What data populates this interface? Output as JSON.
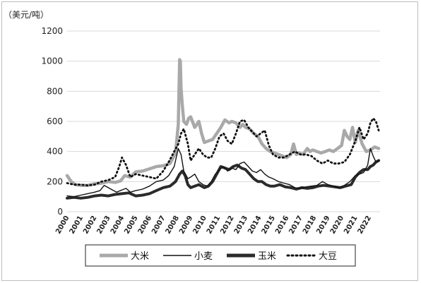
{
  "chart_data": {
    "type": "line",
    "title": "",
    "unit_label": "（美元/吨）",
    "xlabel": "",
    "ylabel": "",
    "ylim": [
      0,
      1200
    ],
    "yticks": [
      0,
      200,
      400,
      600,
      800,
      1000,
      1200
    ],
    "xlim": [
      2000,
      2022.8
    ],
    "xticks": [
      "2000",
      "2001",
      "2002",
      "2003",
      "2004",
      "2005",
      "2006",
      "2007",
      "2008",
      "2009",
      "2010",
      "2011",
      "2012",
      "2013",
      "2014",
      "2015",
      "2016",
      "2017",
      "2018",
      "2019",
      "2020",
      "2021",
      "2022"
    ],
    "grid": "horizontal",
    "legend_position": "bottom",
    "series": [
      {
        "name": "大米",
        "style": "thick-gray",
        "color": "#a9a9a9",
        "x": [
          2000.0,
          2000.3,
          2000.6,
          2001.0,
          2001.5,
          2002.0,
          2002.5,
          2003.0,
          2003.5,
          2003.9,
          2004.2,
          2004.6,
          2005.0,
          2005.5,
          2006.0,
          2006.5,
          2007.0,
          2007.5,
          2007.9,
          2008.1,
          2008.2,
          2008.25,
          2008.3,
          2008.4,
          2008.5,
          2008.7,
          2008.85,
          2009.0,
          2009.3,
          2009.6,
          2009.8,
          2010.0,
          2010.3,
          2010.6,
          2010.9,
          2011.2,
          2011.5,
          2011.8,
          2012.0,
          2012.3,
          2012.6,
          2012.8,
          2013.0,
          2013.3,
          2013.6,
          2013.9,
          2014.2,
          2014.5,
          2014.8,
          2015.1,
          2015.4,
          2015.7,
          2016.0,
          2016.3,
          2016.5,
          2016.7,
          2016.9,
          2017.2,
          2017.5,
          2017.7,
          2017.9,
          2018.2,
          2018.5,
          2018.8,
          2019.1,
          2019.4,
          2019.7,
          2020.0,
          2020.2,
          2020.4,
          2020.6,
          2020.8,
          2021.0,
          2021.2,
          2021.5,
          2021.8,
          2022.1,
          2022.4,
          2022.7
        ],
        "values": [
          240,
          200,
          180,
          175,
          175,
          185,
          190,
          200,
          195,
          205,
          240,
          230,
          265,
          270,
          285,
          300,
          305,
          320,
          390,
          580,
          1010,
          1000,
          820,
          700,
          600,
          580,
          620,
          630,
          560,
          600,
          520,
          460,
          470,
          480,
          520,
          560,
          610,
          590,
          600,
          590,
          560,
          580,
          560,
          550,
          520,
          500,
          450,
          420,
          400,
          390,
          380,
          370,
          360,
          380,
          450,
          380,
          390,
          380,
          420,
          400,
          410,
          400,
          390,
          400,
          410,
          400,
          420,
          440,
          540,
          500,
          480,
          560,
          460,
          540,
          450,
          400,
          410,
          430,
          420
        ]
      },
      {
        "name": "小麦",
        "style": "thin-black",
        "color": "#111111",
        "x": [
          2000.0,
          2000.5,
          2001.0,
          2001.5,
          2002.0,
          2002.4,
          2002.7,
          2003.0,
          2003.3,
          2003.6,
          2004.0,
          2004.3,
          2004.6,
          2005.0,
          2005.5,
          2006.0,
          2006.5,
          2007.0,
          2007.4,
          2007.8,
          2008.1,
          2008.3,
          2008.5,
          2008.8,
          2009.0,
          2009.3,
          2009.6,
          2009.9,
          2010.2,
          2010.5,
          2010.8,
          2011.1,
          2011.4,
          2011.7,
          2012.0,
          2012.3,
          2012.6,
          2012.9,
          2013.2,
          2013.5,
          2013.8,
          2014.1,
          2014.4,
          2014.7,
          2015.0,
          2015.4,
          2015.8,
          2016.2,
          2016.6,
          2017.0,
          2017.4,
          2017.8,
          2018.2,
          2018.6,
          2019.0,
          2019.4,
          2019.8,
          2020.2,
          2020.6,
          2021.0,
          2021.3,
          2021.6,
          2021.9,
          2022.1,
          2022.3,
          2022.5,
          2022.7
        ],
        "values": [
          105,
          100,
          110,
          120,
          130,
          140,
          175,
          160,
          145,
          130,
          145,
          155,
          130,
          140,
          150,
          170,
          200,
          210,
          240,
          300,
          420,
          380,
          270,
          220,
          230,
          250,
          200,
          180,
          170,
          200,
          250,
          280,
          300,
          270,
          290,
          280,
          320,
          330,
          300,
          270,
          260,
          280,
          250,
          230,
          220,
          200,
          190,
          180,
          160,
          155,
          165,
          170,
          175,
          200,
          180,
          170,
          160,
          175,
          200,
          240,
          250,
          260,
          310,
          420,
          370,
          330,
          340
        ]
      },
      {
        "name": "玉米",
        "style": "thick-black",
        "color": "#2b2b2b",
        "x": [
          2000.0,
          2000.5,
          2001.0,
          2001.5,
          2002.0,
          2002.5,
          2003.0,
          2003.5,
          2004.0,
          2004.5,
          2005.0,
          2005.5,
          2006.0,
          2006.5,
          2007.0,
          2007.5,
          2007.9,
          2008.2,
          2008.4,
          2008.6,
          2008.8,
          2009.0,
          2009.3,
          2009.6,
          2010.0,
          2010.3,
          2010.6,
          2010.9,
          2011.2,
          2011.5,
          2011.8,
          2012.1,
          2012.4,
          2012.7,
          2013.0,
          2013.3,
          2013.6,
          2013.9,
          2014.2,
          2014.5,
          2014.8,
          2015.1,
          2015.5,
          2015.9,
          2016.3,
          2016.7,
          2017.1,
          2017.5,
          2017.9,
          2018.3,
          2018.7,
          2019.1,
          2019.5,
          2019.9,
          2020.3,
          2020.7,
          2021.0,
          2021.3,
          2021.6,
          2021.9,
          2022.1,
          2022.3,
          2022.5,
          2022.7
        ],
        "values": [
          90,
          95,
          90,
          95,
          105,
          110,
          105,
          115,
          120,
          125,
          105,
          110,
          120,
          140,
          160,
          170,
          200,
          250,
          270,
          240,
          180,
          160,
          170,
          180,
          160,
          170,
          200,
          250,
          300,
          290,
          280,
          300,
          310,
          290,
          280,
          250,
          220,
          200,
          200,
          180,
          170,
          170,
          180,
          165,
          160,
          150,
          160,
          155,
          160,
          170,
          175,
          170,
          165,
          160,
          170,
          180,
          230,
          260,
          280,
          280,
          300,
          310,
          330,
          340
        ]
      },
      {
        "name": "大豆",
        "style": "dotted-black",
        "color": "#111111",
        "x": [
          2000.0,
          2000.5,
          2001.0,
          2001.5,
          2002.0,
          2002.5,
          2003.0,
          2003.5,
          2003.8,
          2004.0,
          2004.3,
          2004.6,
          2005.0,
          2005.5,
          2006.0,
          2006.5,
          2007.0,
          2007.4,
          2007.8,
          2008.1,
          2008.3,
          2008.5,
          2008.8,
          2009.0,
          2009.3,
          2009.6,
          2009.9,
          2010.2,
          2010.5,
          2010.8,
          2011.1,
          2011.4,
          2011.7,
          2012.0,
          2012.3,
          2012.6,
          2012.9,
          2013.2,
          2013.5,
          2013.8,
          2014.1,
          2014.4,
          2014.7,
          2015.0,
          2015.4,
          2015.8,
          2016.2,
          2016.6,
          2017.0,
          2017.4,
          2017.8,
          2018.2,
          2018.6,
          2019.0,
          2019.4,
          2019.8,
          2020.2,
          2020.6,
          2021.0,
          2021.3,
          2021.6,
          2021.9,
          2022.1,
          2022.3,
          2022.5,
          2022.7
        ],
        "values": [
          190,
          180,
          180,
          175,
          180,
          200,
          210,
          230,
          300,
          360,
          310,
          230,
          250,
          240,
          230,
          220,
          270,
          330,
          400,
          450,
          520,
          550,
          450,
          340,
          380,
          420,
          380,
          360,
          360,
          420,
          500,
          520,
          470,
          450,
          520,
          600,
          610,
          560,
          530,
          500,
          520,
          540,
          440,
          380,
          360,
          360,
          380,
          400,
          380,
          380,
          370,
          340,
          320,
          340,
          320,
          320,
          330,
          380,
          470,
          560,
          480,
          520,
          590,
          620,
          600,
          540
        ]
      }
    ]
  }
}
